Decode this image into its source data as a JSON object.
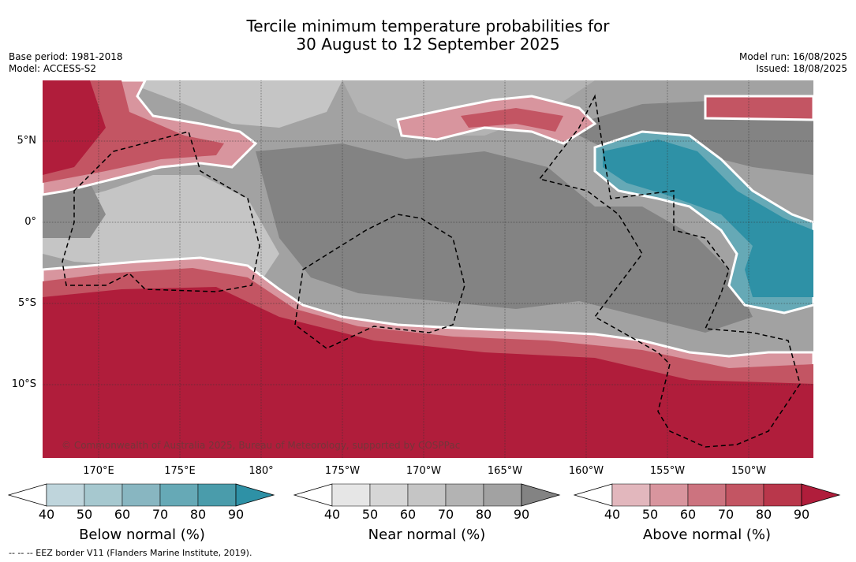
{
  "title_line1": "Tercile minimum temperature probabilities for",
  "title_line2": "30 August to 12 September 2025",
  "meta_left": [
    "Base period: 1981-2018",
    "Model: ACCESS-S2"
  ],
  "meta_right": [
    "Model run: 16/08/2025",
    "Issued: 18/08/2025"
  ],
  "copyright": "© Commonwealth of Australia 2025, Bureau of Meteorology, supported by COSPPac",
  "lat_labels": [
    "5°N",
    "0°",
    "5°S",
    "10°S"
  ],
  "lon_labels": [
    "170°E",
    "175°E",
    "180°",
    "175°W",
    "170°W",
    "165°W",
    "160°W",
    "155°W",
    "150°W"
  ],
  "colorbars": [
    {
      "title": "Below normal (%)",
      "ticks": [
        "40",
        "50",
        "60",
        "70",
        "80",
        "90"
      ],
      "colors": [
        "#bfd5dc",
        "#a6c8cf",
        "#88b6c1",
        "#66a9b6",
        "#4a9cab",
        "#2e91a6"
      ]
    },
    {
      "title": "Near normal (%)",
      "ticks": [
        "40",
        "50",
        "60",
        "70",
        "80",
        "90"
      ],
      "colors": [
        "#e6e6e6",
        "#d6d6d6",
        "#c5c5c5",
        "#b3b3b3",
        "#a2a2a2",
        "#838383"
      ]
    },
    {
      "title": "Above normal (%)",
      "ticks": [
        "40",
        "50",
        "60",
        "70",
        "80",
        "90"
      ],
      "colors": [
        "#e2b7bd",
        "#d8959e",
        "#cc737f",
        "#c35563",
        "#b9374b",
        "#b01d3b"
      ]
    }
  ],
  "footer": "--  --  -- EEZ border V11 (Flanders Marine Institute, 2019)."
}
